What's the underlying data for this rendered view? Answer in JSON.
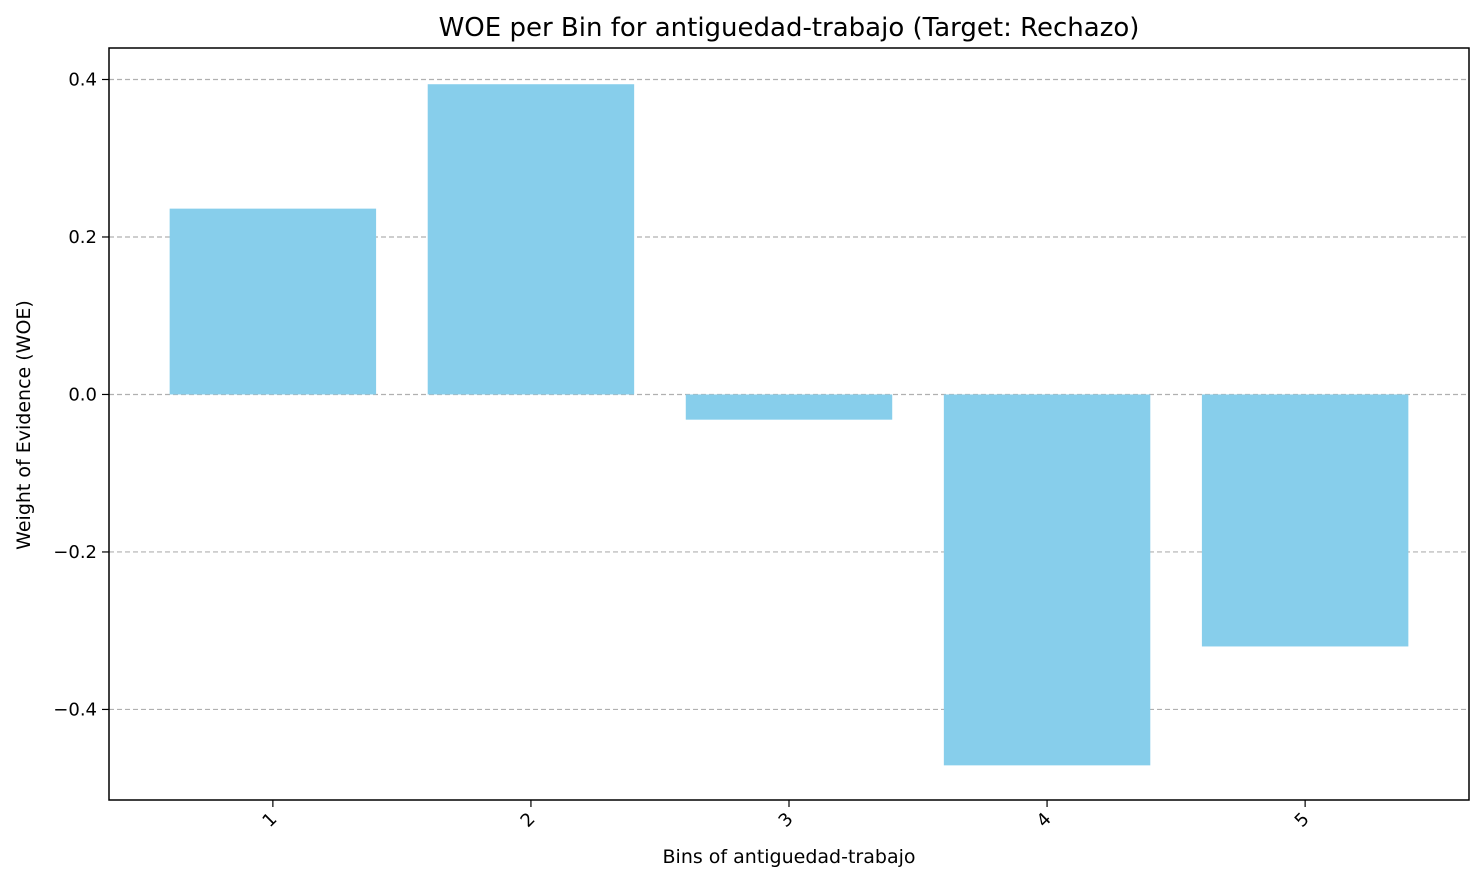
{
  "chart_data": {
    "type": "bar",
    "title": "WOE per Bin for antiguedad-trabajo (Target: Rechazo)",
    "xlabel": "Bins of antiguedad-trabajo",
    "ylabel": "Weight of Evidence (WOE)",
    "categories": [
      "1",
      "2",
      "3",
      "4",
      "5"
    ],
    "values": [
      0.236,
      0.394,
      -0.032,
      -0.471,
      -0.32
    ],
    "ylim": [
      -0.515,
      0.44
    ],
    "yticks": [
      0.4,
      0.2,
      0.0,
      -0.2,
      -0.4
    ],
    "ytick_labels": [
      "0.4",
      "0.2",
      "0.0",
      "−0.2",
      "−0.4"
    ],
    "bar_color": "#87ceeb",
    "grid": "y-dashed",
    "xtick_rotation": 45,
    "legend": "none"
  }
}
